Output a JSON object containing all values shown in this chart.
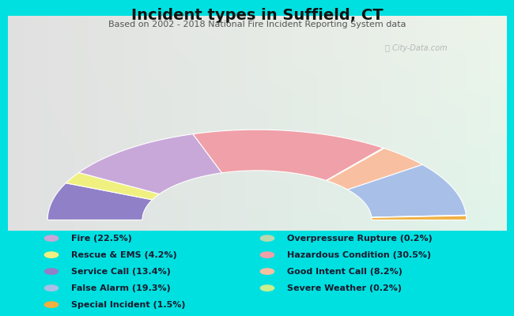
{
  "title": "Incident types in Suffield, CT",
  "subtitle": "Based on 2002 - 2018 National Fire Incident Reporting System data",
  "bg_color": "#00e0e0",
  "chart_bg_colors": [
    "#e8f0e0",
    "#f8f8f0",
    "#e8f0e8"
  ],
  "watermark": "City-Data.com",
  "categories": [
    "Fire",
    "Rescue & EMS",
    "Service Call",
    "False Alarm",
    "Special Incident",
    "Overpressure Rupture",
    "Hazardous Condition",
    "Good Intent Call",
    "Severe Weather"
  ],
  "values": [
    22.5,
    4.2,
    13.4,
    19.3,
    1.5,
    0.2,
    30.5,
    8.2,
    0.2
  ],
  "colors": [
    "#c8a8d8",
    "#f0f080",
    "#9080c8",
    "#a8c0e8",
    "#f0b040",
    "#b8d8b0",
    "#f0a0a8",
    "#f8c0a0",
    "#c8f090"
  ],
  "draw_order": [
    2,
    1,
    0,
    6,
    5,
    7,
    3,
    8,
    4
  ],
  "outer_r": 0.42,
  "inner_r": 0.23,
  "title_fontsize": 14,
  "subtitle_fontsize": 8,
  "legend_fontsize": 8
}
